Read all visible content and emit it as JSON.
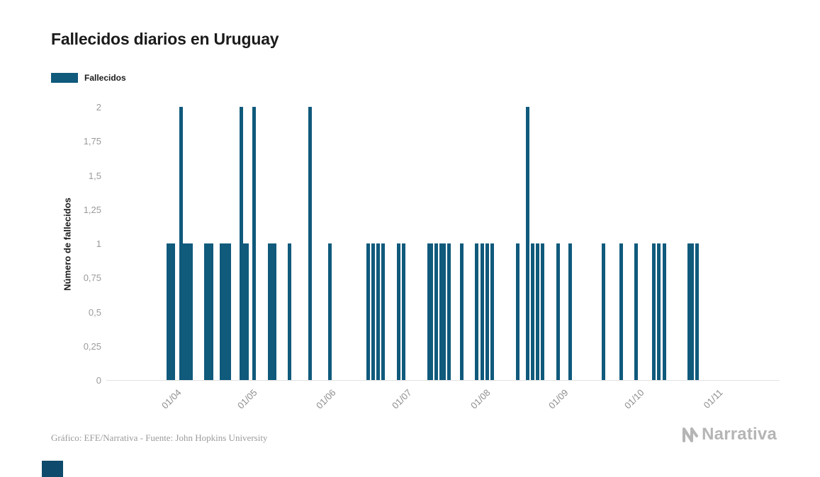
{
  "title": "Fallecidos diarios en Uruguay",
  "legend": {
    "label": "Fallecidos",
    "color": "#105a7c"
  },
  "footer": {
    "source": "Gráfico: EFE/Narrativa - Fuente: John Hopkins University",
    "brand": "Narrativa"
  },
  "colors": {
    "bar": "#105a7c",
    "axis_text": "#9a9a9a",
    "text": "#1b1b1b",
    "brand": "#b5b5b5"
  },
  "chart_data": {
    "type": "bar",
    "title": "Fallecidos diarios en Uruguay",
    "xlabel": "",
    "ylabel": "Número de fallecidos",
    "ylim": [
      0,
      2
    ],
    "grid": false,
    "legend_position": "top-left",
    "y_ticks": [
      {
        "value": 2,
        "label": "2"
      },
      {
        "value": 1.75,
        "label": "1,75"
      },
      {
        "value": 1.5,
        "label": "1,5"
      },
      {
        "value": 1.25,
        "label": "1,25"
      },
      {
        "value": 1,
        "label": "1"
      },
      {
        "value": 0.75,
        "label": "0,75"
      },
      {
        "value": 0.5,
        "label": "0,5"
      },
      {
        "value": 0.25,
        "label": "0,25"
      },
      {
        "value": 0,
        "label": "0"
      }
    ],
    "x_ticks": [
      {
        "date": "2020-04-01",
        "label": "01/04"
      },
      {
        "date": "2020-05-01",
        "label": "01/05"
      },
      {
        "date": "2020-06-01",
        "label": "01/06"
      },
      {
        "date": "2020-07-01",
        "label": "01/07"
      },
      {
        "date": "2020-08-01",
        "label": "01/08"
      },
      {
        "date": "2020-09-01",
        "label": "01/09"
      },
      {
        "date": "2020-10-01",
        "label": "01/10"
      },
      {
        "date": "2020-11-01",
        "label": "01/11"
      }
    ],
    "series": [
      {
        "name": "Fallecidos",
        "points": [
          {
            "date": "2020-03-29",
            "value": 1
          },
          {
            "date": "2020-03-30",
            "value": 1
          },
          {
            "date": "2020-03-31",
            "value": 1
          },
          {
            "date": "2020-04-03",
            "value": 2
          },
          {
            "date": "2020-04-04",
            "value": 1
          },
          {
            "date": "2020-04-05",
            "value": 1
          },
          {
            "date": "2020-04-06",
            "value": 1
          },
          {
            "date": "2020-04-07",
            "value": 1
          },
          {
            "date": "2020-04-13",
            "value": 1
          },
          {
            "date": "2020-04-14",
            "value": 1
          },
          {
            "date": "2020-04-15",
            "value": 1
          },
          {
            "date": "2020-04-19",
            "value": 1
          },
          {
            "date": "2020-04-20",
            "value": 1
          },
          {
            "date": "2020-04-21",
            "value": 1
          },
          {
            "date": "2020-04-22",
            "value": 1
          },
          {
            "date": "2020-04-27",
            "value": 2
          },
          {
            "date": "2020-04-28",
            "value": 1
          },
          {
            "date": "2020-04-29",
            "value": 1
          },
          {
            "date": "2020-05-02",
            "value": 2
          },
          {
            "date": "2020-05-08",
            "value": 1
          },
          {
            "date": "2020-05-09",
            "value": 1
          },
          {
            "date": "2020-05-10",
            "value": 1
          },
          {
            "date": "2020-05-16",
            "value": 1
          },
          {
            "date": "2020-05-24",
            "value": 2
          },
          {
            "date": "2020-06-01",
            "value": 1
          },
          {
            "date": "2020-06-16",
            "value": 1
          },
          {
            "date": "2020-06-18",
            "value": 1
          },
          {
            "date": "2020-06-20",
            "value": 1
          },
          {
            "date": "2020-06-22",
            "value": 1
          },
          {
            "date": "2020-06-28",
            "value": 1
          },
          {
            "date": "2020-06-30",
            "value": 1
          },
          {
            "date": "2020-07-10",
            "value": 1
          },
          {
            "date": "2020-07-11",
            "value": 1
          },
          {
            "date": "2020-07-13",
            "value": 1
          },
          {
            "date": "2020-07-15",
            "value": 1
          },
          {
            "date": "2020-07-16",
            "value": 1
          },
          {
            "date": "2020-07-18",
            "value": 1
          },
          {
            "date": "2020-07-23",
            "value": 1
          },
          {
            "date": "2020-07-29",
            "value": 1
          },
          {
            "date": "2020-07-31",
            "value": 1
          },
          {
            "date": "2020-08-02",
            "value": 1
          },
          {
            "date": "2020-08-04",
            "value": 1
          },
          {
            "date": "2020-08-14",
            "value": 1
          },
          {
            "date": "2020-08-18",
            "value": 2
          },
          {
            "date": "2020-08-20",
            "value": 1
          },
          {
            "date": "2020-08-22",
            "value": 1
          },
          {
            "date": "2020-08-24",
            "value": 1
          },
          {
            "date": "2020-08-30",
            "value": 1
          },
          {
            "date": "2020-09-04",
            "value": 1
          },
          {
            "date": "2020-09-17",
            "value": 1
          },
          {
            "date": "2020-09-24",
            "value": 1
          },
          {
            "date": "2020-09-30",
            "value": 1
          },
          {
            "date": "2020-10-07",
            "value": 1
          },
          {
            "date": "2020-10-09",
            "value": 1
          },
          {
            "date": "2020-10-11",
            "value": 1
          },
          {
            "date": "2020-10-21",
            "value": 1
          },
          {
            "date": "2020-10-22",
            "value": 1
          },
          {
            "date": "2020-10-24",
            "value": 1
          }
        ]
      }
    ]
  }
}
